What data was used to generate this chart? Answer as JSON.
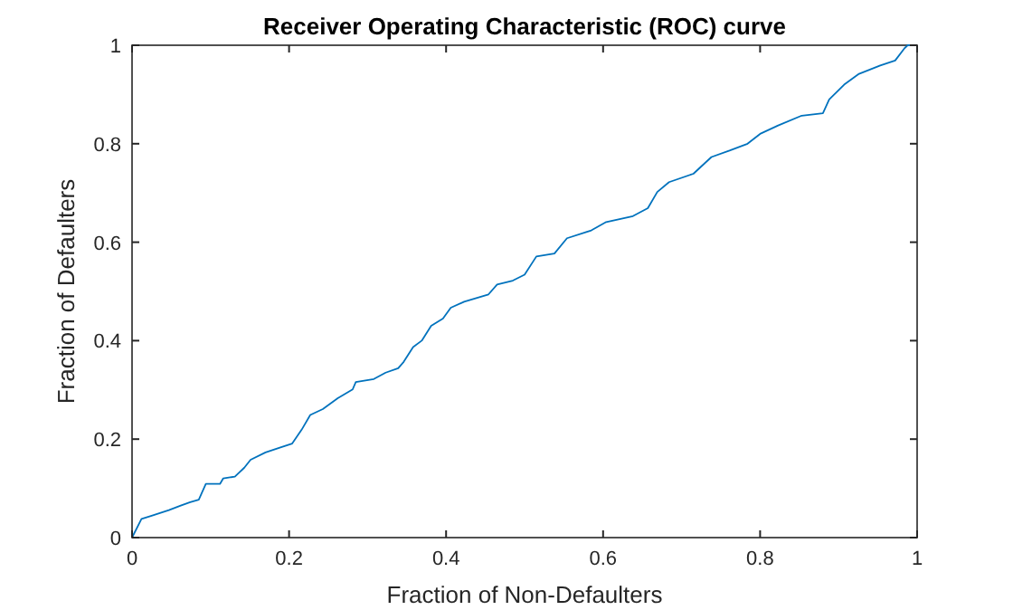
{
  "chart_data": {
    "type": "line",
    "title": "Receiver Operating Characteristic (ROC) curve",
    "xlabel": "Fraction of Non-Defaulters",
    "ylabel": "Fraction of Defaulters",
    "x": [
      0,
      0.012,
      0.024,
      0.047,
      0.062,
      0.074,
      0.085,
      0.094,
      0.112,
      0.116,
      0.131,
      0.143,
      0.151,
      0.17,
      0.189,
      0.204,
      0.216,
      0.227,
      0.243,
      0.262,
      0.281,
      0.285,
      0.308,
      0.323,
      0.339,
      0.346,
      0.358,
      0.369,
      0.381,
      0.396,
      0.406,
      0.423,
      0.454,
      0.465,
      0.485,
      0.5,
      0.515,
      0.538,
      0.554,
      0.585,
      0.604,
      0.638,
      0.657,
      0.669,
      0.684,
      0.715,
      0.738,
      0.761,
      0.784,
      0.8,
      0.823,
      0.853,
      0.88,
      0.888,
      0.907,
      0.926,
      0.953,
      0.972,
      0.984,
      0.988,
      1
    ],
    "series": [
      {
        "color": "#0072bd",
        "values": [
          0,
          0.038,
          0.044,
          0.056,
          0.065,
          0.072,
          0.077,
          0.109,
          0.109,
          0.12,
          0.124,
          0.142,
          0.158,
          0.173,
          0.183,
          0.191,
          0.219,
          0.249,
          0.261,
          0.283,
          0.301,
          0.316,
          0.322,
          0.335,
          0.344,
          0.357,
          0.387,
          0.4,
          0.43,
          0.445,
          0.467,
          0.479,
          0.494,
          0.514,
          0.522,
          0.534,
          0.571,
          0.577,
          0.608,
          0.624,
          0.641,
          0.653,
          0.669,
          0.702,
          0.722,
          0.739,
          0.773,
          0.786,
          0.8,
          0.82,
          0.837,
          0.857,
          0.862,
          0.89,
          0.92,
          0.942,
          0.959,
          0.969,
          0.994,
          1,
          1
        ]
      }
    ],
    "xlim": [
      0,
      1
    ],
    "ylim": [
      0,
      1
    ],
    "xticks": [
      0,
      0.2,
      0.4,
      0.6,
      0.8,
      1
    ],
    "yticks": [
      0,
      0.2,
      0.4,
      0.6,
      0.8,
      1
    ],
    "marker": "none",
    "line_style": "solid"
  }
}
